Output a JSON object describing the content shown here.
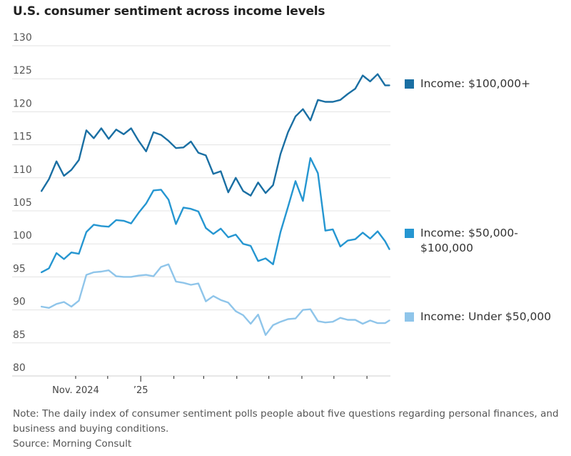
{
  "title": "U.S. consumer sentiment across income levels",
  "note": "Note: The daily index of consumer sentiment polls people about five questions regarding personal finances, and business and buying conditions.",
  "source": "Source: Morning Consult",
  "chart_data": {
    "type": "line",
    "title": "U.S. consumer sentiment across income levels",
    "xlabel": "",
    "ylabel": "",
    "ylim": [
      80,
      130
    ],
    "yticks": [
      "130",
      "125",
      "120",
      "115",
      "110",
      "105",
      "100",
      "95",
      "90",
      "85",
      "80"
    ],
    "xlim": [
      "2024-09-30",
      "2025-08-22"
    ],
    "xticks": [
      {
        "date": "2024-11-01",
        "label": "Nov. 2024"
      },
      {
        "date": "2024-12-01",
        "label": ""
      },
      {
        "date": "2025-01-01",
        "label": "’25"
      },
      {
        "date": "2025-02-01",
        "label": ""
      },
      {
        "date": "2025-03-01",
        "label": ""
      },
      {
        "date": "2025-04-01",
        "label": ""
      },
      {
        "date": "2025-05-01",
        "label": ""
      },
      {
        "date": "2025-06-01",
        "label": ""
      },
      {
        "date": "2025-07-01",
        "label": ""
      },
      {
        "date": "2025-08-01",
        "label": ""
      }
    ],
    "grid": "horizontal",
    "legend": "right, labels at line ends",
    "x": [
      "2024-09-30",
      "2024-10-07",
      "2024-10-14",
      "2024-10-21",
      "2024-10-28",
      "2024-11-04",
      "2024-11-11",
      "2024-11-18",
      "2024-11-25",
      "2024-12-02",
      "2024-12-09",
      "2024-12-16",
      "2024-12-23",
      "2024-12-30",
      "2025-01-06",
      "2025-01-13",
      "2025-01-20",
      "2025-01-27",
      "2025-02-03",
      "2025-02-10",
      "2025-02-17",
      "2025-02-24",
      "2025-03-03",
      "2025-03-10",
      "2025-03-17",
      "2025-03-24",
      "2025-03-31",
      "2025-04-07",
      "2025-04-14",
      "2025-04-21",
      "2025-04-28",
      "2025-05-05",
      "2025-05-12",
      "2025-05-19",
      "2025-05-26",
      "2025-06-02",
      "2025-06-09",
      "2025-06-16",
      "2025-06-23",
      "2025-06-30",
      "2025-07-07",
      "2025-07-14",
      "2025-07-21",
      "2025-07-28",
      "2025-08-04",
      "2025-08-11",
      "2025-08-18",
      "2025-08-22"
    ],
    "series": [
      {
        "name": "Income: $100,000+",
        "color": "#1a6fa3",
        "values": [
          108,
          109.8,
          112.5,
          110.3,
          111.2,
          112.7,
          117.2,
          116,
          117.5,
          115.9,
          117.3,
          116.6,
          117.5,
          115.6,
          114,
          116.9,
          116.5,
          115.6,
          114.5,
          114.6,
          115.5,
          113.8,
          113.4,
          110.6,
          111,
          107.8,
          110,
          108,
          107.3,
          109.3,
          107.7,
          108.9,
          113.6,
          116.9,
          119.3,
          120.4,
          118.7,
          121.8,
          121.5,
          121.5,
          121.8,
          122.7,
          123.5,
          125.5,
          124.6,
          125.7,
          124,
          124
        ]
      },
      {
        "name": "Income: $50,000-$100,000",
        "color": "#2596d1",
        "values": [
          95.7,
          96.3,
          98.6,
          97.7,
          98.7,
          98.5,
          101.8,
          102.9,
          102.7,
          102.6,
          103.6,
          103.5,
          103.1,
          104.7,
          106.1,
          108.1,
          108.2,
          106.7,
          103,
          105.5,
          105.3,
          104.9,
          102.4,
          101.5,
          102.3,
          101,
          101.4,
          100,
          99.7,
          97.4,
          97.8,
          96.9,
          101.8,
          105.6,
          109.5,
          106.5,
          113,
          110.7,
          102,
          102.2,
          99.6,
          100.5,
          100.7,
          101.7,
          100.8,
          101.9,
          100.4,
          99.2
        ]
      },
      {
        "name": "Income: Under $50,000",
        "color": "#8fc5ea",
        "values": [
          90.5,
          90.3,
          90.9,
          91.2,
          90.5,
          91.4,
          95.3,
          95.7,
          95.8,
          96,
          95.1,
          95,
          95,
          95.2,
          95.3,
          95.1,
          96.5,
          96.9,
          94.3,
          94.1,
          93.8,
          94,
          91.3,
          92.1,
          91.5,
          91.1,
          89.8,
          89.2,
          87.9,
          89.3,
          86.2,
          87.7,
          88.2,
          88.6,
          88.7,
          90,
          90.1,
          88.3,
          88.1,
          88.2,
          88.8,
          88.5,
          88.5,
          87.9,
          88.4,
          88,
          88,
          88.4
        ]
      }
    ]
  },
  "legend": [
    {
      "label_line1": "Income: $100,000+",
      "label_line2": ""
    },
    {
      "label_line1": "Income: $50,000-",
      "label_line2": "$100,000"
    },
    {
      "label_line1": "Income: Under $50,000",
      "label_line2": ""
    }
  ]
}
